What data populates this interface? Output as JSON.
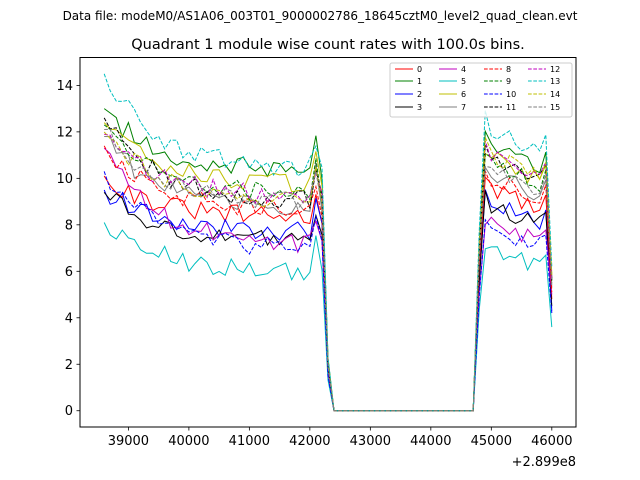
{
  "figure": {
    "suptitle": "Data file: modeM0/AS1A06_003T01_9000002786_18645cztM0_level2_quad_clean.evt",
    "title": "Quadrant 1 module wise count rates with 100.0s bins."
  },
  "chart_data": {
    "type": "line",
    "title": "Quadrant 1 module wise count rates with 100.0s bins.",
    "xlabel": "",
    "ylabel": "",
    "x_offset_label": "+2.899e8",
    "xlim": [
      38200,
      46400
    ],
    "ylim": [
      -0.7,
      15.2
    ],
    "xticks": [
      39000,
      40000,
      41000,
      42000,
      43000,
      44000,
      45000,
      46000
    ],
    "xtick_labels": [
      "39000",
      "40000",
      "41000",
      "42000",
      "43000",
      "44000",
      "45000",
      "46000"
    ],
    "yticks": [
      0,
      2,
      4,
      6,
      8,
      10,
      12,
      14
    ],
    "ytick_labels": [
      "0",
      "2",
      "4",
      "6",
      "8",
      "10",
      "12",
      "14"
    ],
    "grid": false,
    "legend_position": "top-right",
    "bin_size_s": 100,
    "segment1": {
      "start": 38600,
      "end": 42200
    },
    "drop_end": 42400,
    "gap": {
      "start": 42400,
      "end": 44700
    },
    "rise_end": 44900,
    "segment2": {
      "start": 44900,
      "end": 46000
    },
    "series": [
      {
        "name": "0",
        "color": "#ff0000",
        "dash": "solid",
        "start": 10.1,
        "level1": 8.3,
        "level2": 8.6,
        "end": 4.8
      },
      {
        "name": "1",
        "color": "#008000",
        "dash": "solid",
        "start": 13.0,
        "level1": 10.3,
        "level2": 10.3,
        "end": 5.7
      },
      {
        "name": "2",
        "color": "#0000ff",
        "dash": "solid",
        "start": 9.5,
        "level1": 7.7,
        "level2": 8.0,
        "end": 4.3
      },
      {
        "name": "3",
        "color": "#000000",
        "dash": "solid",
        "start": 9.4,
        "level1": 7.3,
        "level2": 7.9,
        "end": 4.5
      },
      {
        "name": "4",
        "color": "#bf00bf",
        "dash": "solid",
        "start": 11.3,
        "level1": 7.1,
        "level2": 7.2,
        "end": 5.0
      },
      {
        "name": "5",
        "color": "#00bfbf",
        "dash": "solid",
        "start": 8.1,
        "level1": 6.0,
        "level2": 6.2,
        "end": 3.6
      },
      {
        "name": "6",
        "color": "#bfbf00",
        "dash": "solid",
        "start": 12.4,
        "level1": 9.7,
        "level2": 9.8,
        "end": 5.9
      },
      {
        "name": "7",
        "color": "#7f7f7f",
        "dash": "solid",
        "start": 11.8,
        "level1": 8.7,
        "level2": 9.2,
        "end": 5.3
      },
      {
        "name": "8",
        "color": "#ff0000",
        "dash": "dashed",
        "start": 11.4,
        "level1": 8.6,
        "level2": 9.0,
        "end": 5.1
      },
      {
        "name": "9",
        "color": "#008000",
        "dash": "dashed",
        "start": 12.3,
        "level1": 9.3,
        "level2": 9.6,
        "end": 5.5
      },
      {
        "name": "10",
        "color": "#0000ff",
        "dash": "dashed",
        "start": 10.3,
        "level1": 6.9,
        "level2": 7.0,
        "end": 4.2
      },
      {
        "name": "11",
        "color": "#000000",
        "dash": "dashed",
        "start": 12.6,
        "level1": 9.0,
        "level2": 9.8,
        "end": 5.6
      },
      {
        "name": "12",
        "color": "#bf00bf",
        "dash": "dashed",
        "start": 11.9,
        "level1": 9.2,
        "level2": 9.9,
        "end": 5.7
      },
      {
        "name": "13",
        "color": "#00bfbf",
        "dash": "dashed",
        "start": 14.5,
        "level1": 10.4,
        "level2": 11.0,
        "end": 6.2
      },
      {
        "name": "14",
        "color": "#bfbf00",
        "dash": "dashed",
        "start": 12.0,
        "level1": 9.0,
        "level2": 9.9,
        "end": 5.8
      },
      {
        "name": "15",
        "color": "#7f7f7f",
        "dash": "dashed",
        "start": 12.1,
        "level1": 8.9,
        "level2": 9.4,
        "end": 5.4
      }
    ]
  }
}
